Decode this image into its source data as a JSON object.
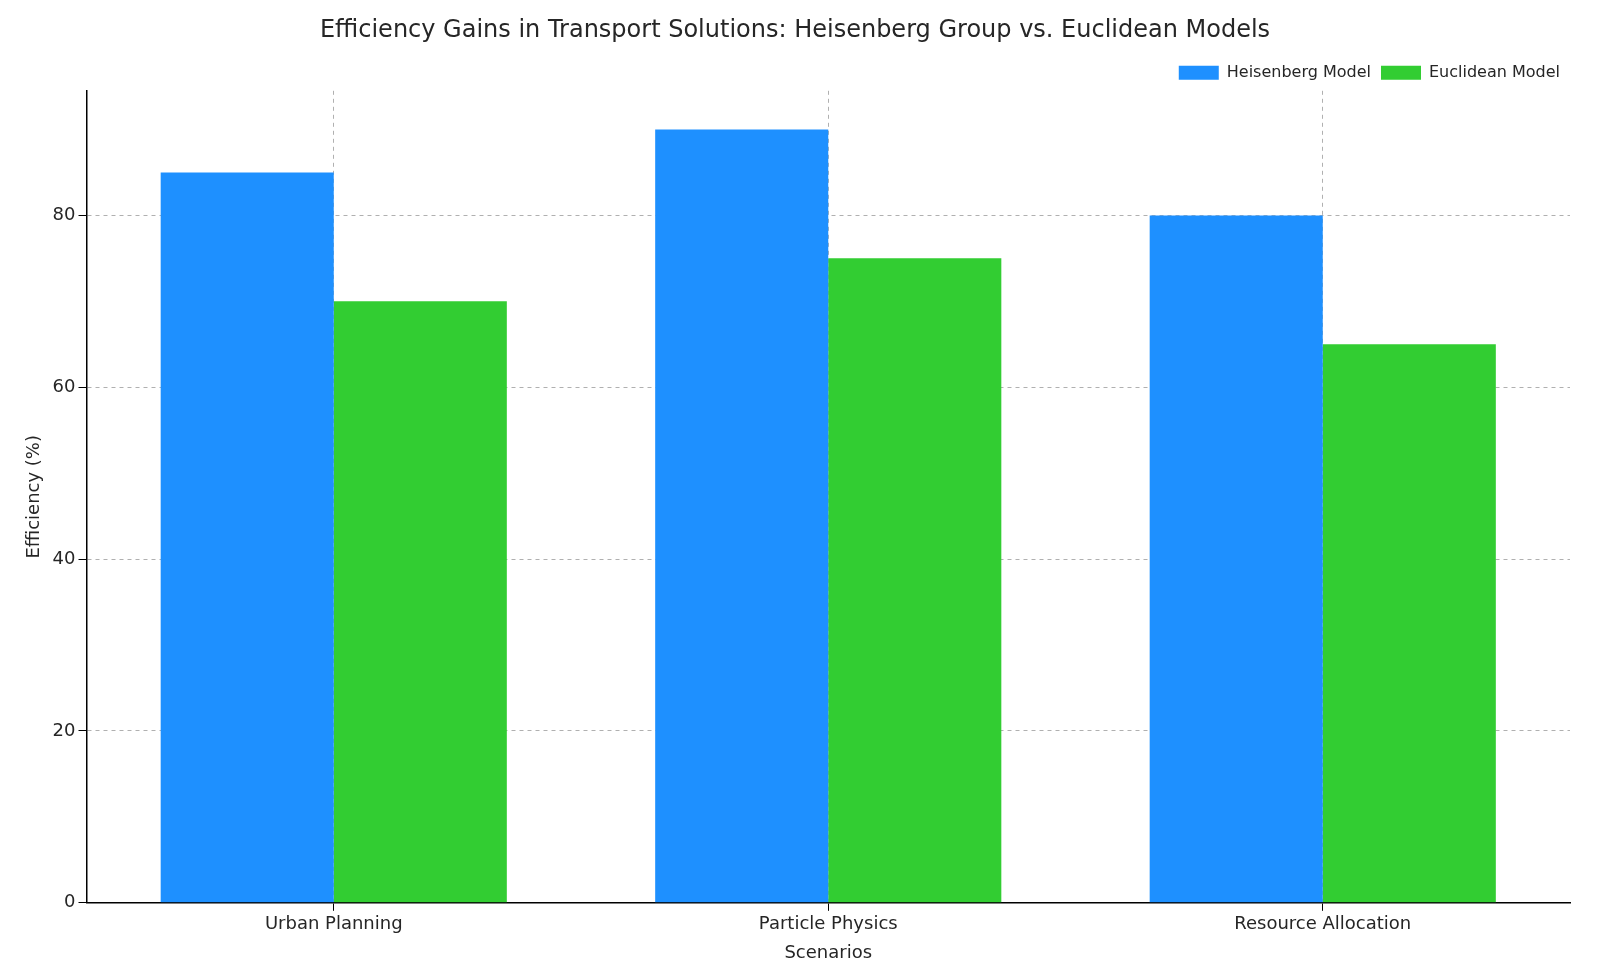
{
  "chart_data": {
    "type": "bar",
    "title": "Efficiency Gains in Transport Solutions: Heisenberg Group vs. Euclidean Models",
    "x_label": "Scenarios",
    "y_label": "Efficiency (%)",
    "categories": [
      "Urban Planning",
      "Particle Physics",
      "Resource Allocation"
    ],
    "series": [
      {
        "name": "Heisenberg Model",
        "color": "#1e90ff",
        "values": [
          85,
          90,
          80
        ]
      },
      {
        "name": "Euclidean Model",
        "color": "#32cd32",
        "values": [
          70,
          75,
          65
        ]
      }
    ],
    "ylim": [
      0,
      94.5
    ],
    "yticks": [
      0,
      20,
      40,
      60,
      80
    ],
    "grid": true,
    "legend": "upper right"
  }
}
